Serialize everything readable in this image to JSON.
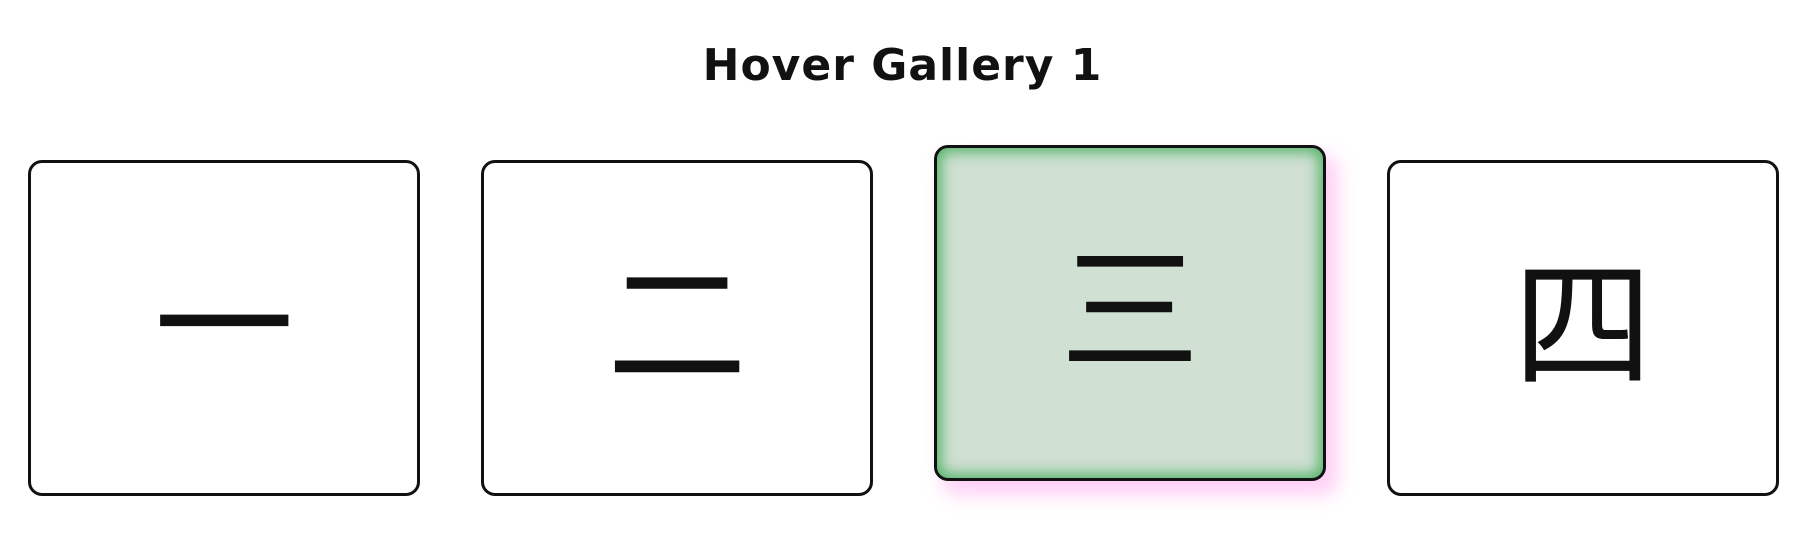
{
  "page": {
    "title": "Hover Gallery 1"
  },
  "gallery": {
    "items": [
      {
        "label": "一",
        "icon": "numeral-one-glyph",
        "hovered": false
      },
      {
        "label": "二",
        "icon": "numeral-two-glyph",
        "hovered": false
      },
      {
        "label": "三",
        "icon": "numeral-three-glyph",
        "hovered": true
      },
      {
        "label": "四",
        "icon": "numeral-four-glyph",
        "hovered": false
      }
    ]
  },
  "colors": {
    "text": "#111111",
    "card_border": "#111111",
    "card_background": "#ffffff",
    "hover_background": "#d0e0d3",
    "hover_inner_glow": "#3caa55",
    "hover_outer_shadow": "#ff78e6"
  }
}
